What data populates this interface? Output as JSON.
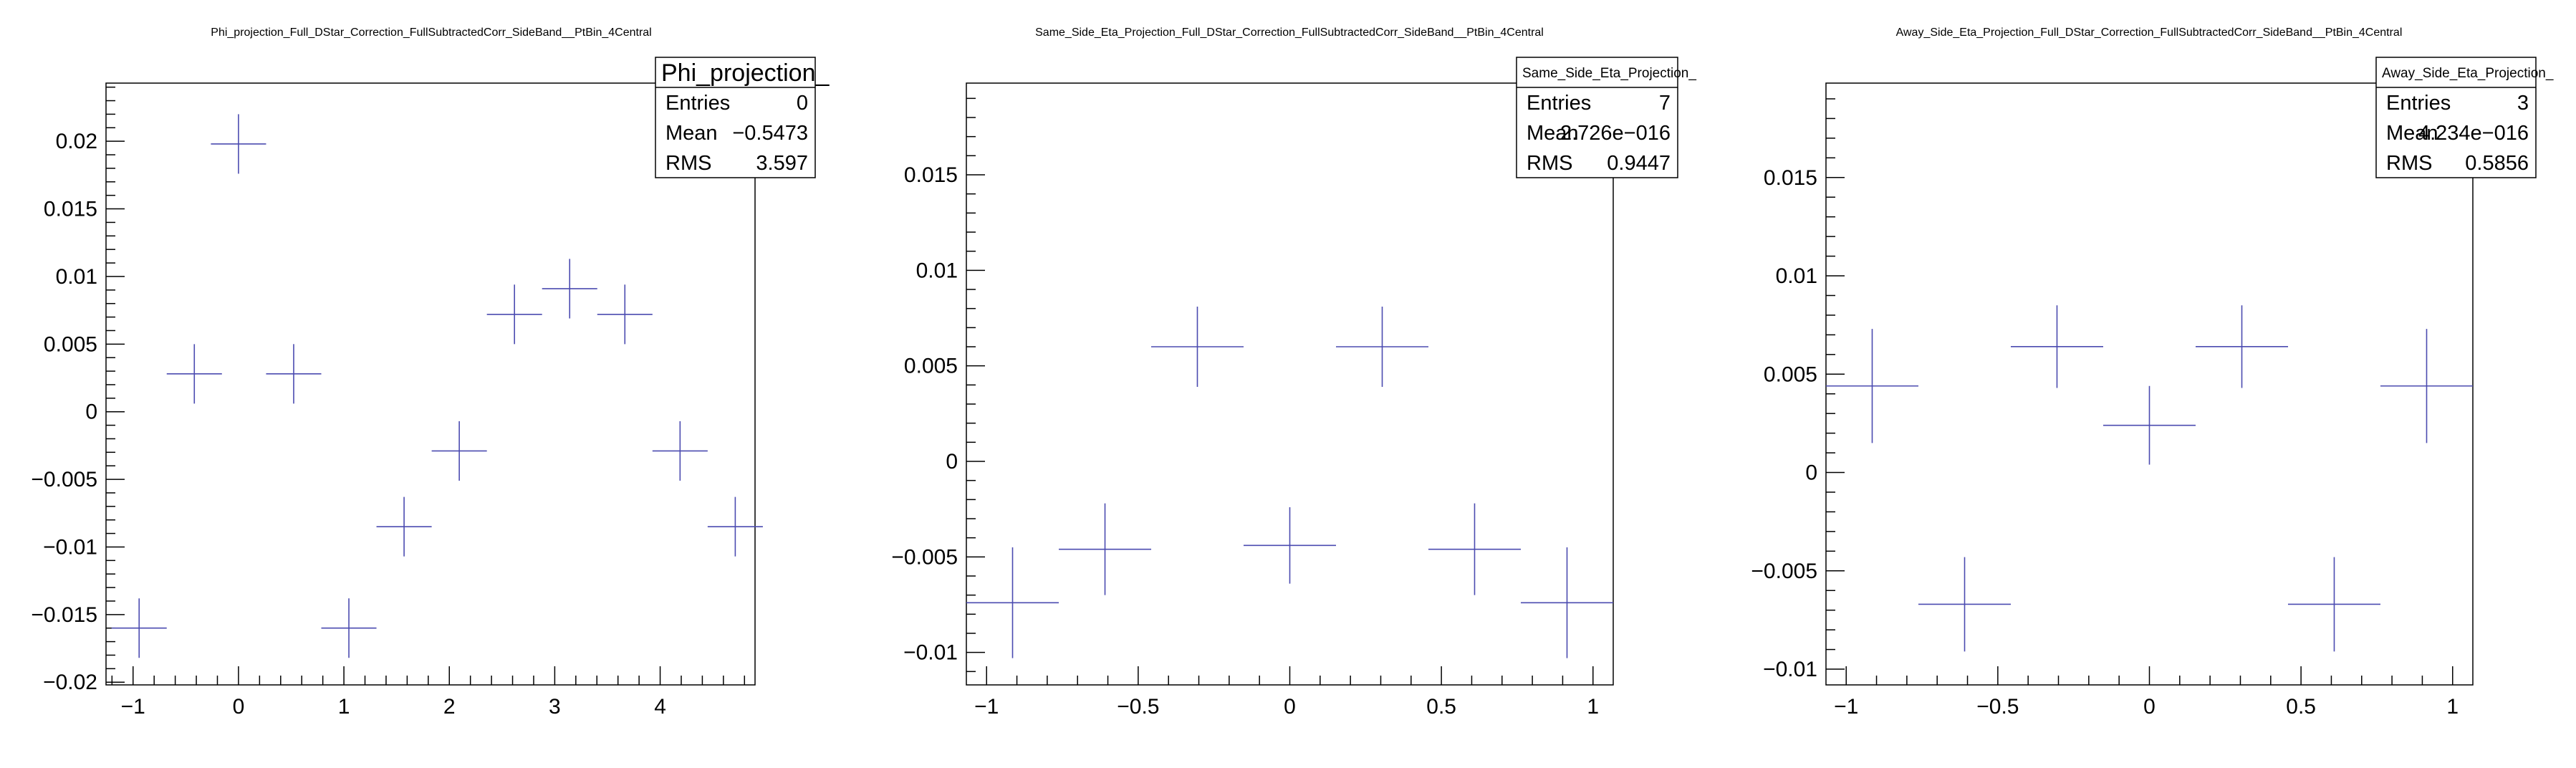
{
  "colors": {
    "marker": "#4b4bb0",
    "frame": "#000000",
    "background": "#ffffff"
  },
  "chart_data": [
    {
      "type": "scatter",
      "title": "Phi_projection_Full_DStar_Correction_FullSubtractedCorr_SideBand__PtBin_4Central",
      "xlabel": "",
      "ylabel": "",
      "xlim": [
        -1.2566,
        4.9
      ],
      "ylim": [
        -0.0202,
        0.0243
      ],
      "x_ticks": [
        -1,
        0,
        1,
        2,
        3,
        4
      ],
      "x_tick_labels": [
        "−1",
        "0",
        "1",
        "2",
        "3",
        "4"
      ],
      "y_ticks": [
        -0.02,
        -0.015,
        -0.01,
        -0.005,
        0,
        0.005,
        0.01,
        0.015,
        0.02
      ],
      "y_tick_labels": [
        "−0.02",
        "−0.015",
        "−0.01",
        "−0.005",
        "0",
        "0.005",
        "0.01",
        "0.015",
        "0.02"
      ],
      "points": [
        {
          "x": -0.9425,
          "y": -0.016,
          "xerr": 0.2618,
          "yerr": 0.0022
        },
        {
          "x": -0.4189,
          "y": 0.0028,
          "xerr": 0.2618,
          "yerr": 0.0022
        },
        {
          "x": 0.0,
          "y": 0.0198,
          "xerr": 0.2618,
          "yerr": 0.0022
        },
        {
          "x": 0.5236,
          "y": 0.0028,
          "xerr": 0.2618,
          "yerr": 0.0022
        },
        {
          "x": 1.0472,
          "y": -0.016,
          "xerr": 0.2618,
          "yerr": 0.0022
        },
        {
          "x": 1.5708,
          "y": -0.0085,
          "xerr": 0.2618,
          "yerr": 0.0022
        },
        {
          "x": 2.0944,
          "y": -0.0029,
          "xerr": 0.2618,
          "yerr": 0.0022
        },
        {
          "x": 2.618,
          "y": 0.0072,
          "xerr": 0.2618,
          "yerr": 0.0022
        },
        {
          "x": 3.1416,
          "y": 0.0091,
          "xerr": 0.2618,
          "yerr": 0.0022
        },
        {
          "x": 3.6652,
          "y": 0.0072,
          "xerr": 0.2618,
          "yerr": 0.0022
        },
        {
          "x": 4.1888,
          "y": -0.0029,
          "xerr": 0.2618,
          "yerr": 0.0022
        },
        {
          "x": 4.7124,
          "y": -0.0085,
          "xerr": 0.2618,
          "yerr": 0.0022
        }
      ],
      "stats": {
        "name": "Phi_projection_",
        "rows": [
          {
            "label": "Entries",
            "value": "0"
          },
          {
            "label": "Mean",
            "value": "−0.5473"
          },
          {
            "label": "RMS",
            "value": "3.597"
          }
        ]
      }
    },
    {
      "type": "scatter",
      "title": "Same_Side_Eta_Projection_Full_DStar_Correction_FullSubtractedCorr_SideBand__PtBin_4Central",
      "xlabel": "",
      "ylabel": "",
      "xlim": [
        -1.0667,
        1.0667
      ],
      "ylim": [
        -0.0117,
        0.0198
      ],
      "x_ticks": [
        -1,
        -0.5,
        0,
        0.5,
        1
      ],
      "x_tick_labels": [
        "−1",
        "−0.5",
        "0",
        "0.5",
        "1"
      ],
      "y_ticks": [
        -0.01,
        -0.005,
        0,
        0.005,
        0.01,
        0.015
      ],
      "y_tick_labels": [
        "−0.01",
        "−0.005",
        "0",
        "0.005",
        "0.01",
        "0.015"
      ],
      "points": [
        {
          "x": -0.9143,
          "y": -0.0074,
          "xerr": 0.1524,
          "yerr": 0.0029
        },
        {
          "x": -0.6095,
          "y": -0.0046,
          "xerr": 0.1524,
          "yerr": 0.0024
        },
        {
          "x": -0.3048,
          "y": 0.006,
          "xerr": 0.1524,
          "yerr": 0.0021
        },
        {
          "x": 0.0,
          "y": -0.0044,
          "xerr": 0.1524,
          "yerr": 0.002
        },
        {
          "x": 0.3048,
          "y": 0.006,
          "xerr": 0.1524,
          "yerr": 0.0021
        },
        {
          "x": 0.6095,
          "y": -0.0046,
          "xerr": 0.1524,
          "yerr": 0.0024
        },
        {
          "x": 0.9143,
          "y": -0.0074,
          "xerr": 0.1524,
          "yerr": 0.0029
        }
      ],
      "stats": {
        "name": "Same_Side_Eta_Projection_",
        "rows": [
          {
            "label": "Entries",
            "value": "7"
          },
          {
            "label": "Mean",
            "value": "2.726e−016"
          },
          {
            "label": "RMS",
            "value": "0.9447"
          }
        ]
      }
    },
    {
      "type": "scatter",
      "title": "Away_Side_Eta_Projection_Full_DStar_Correction_FullSubtractedCorr_SideBand__PtBin_4Central",
      "xlabel": "",
      "ylabel": "",
      "xlim": [
        -1.0667,
        1.0667
      ],
      "ylim": [
        -0.0108,
        0.0198
      ],
      "x_ticks": [
        -1,
        -0.5,
        0,
        0.5,
        1
      ],
      "x_tick_labels": [
        "−1",
        "−0.5",
        "0",
        "0.5",
        "1"
      ],
      "y_ticks": [
        -0.01,
        -0.005,
        0,
        0.005,
        0.01,
        0.015
      ],
      "y_tick_labels": [
        "−0.01",
        "−0.005",
        "0",
        "0.005",
        "0.01",
        "0.015"
      ],
      "points": [
        {
          "x": -0.9143,
          "y": 0.0044,
          "xerr": 0.1524,
          "yerr": 0.0029
        },
        {
          "x": -0.6095,
          "y": -0.0067,
          "xerr": 0.1524,
          "yerr": 0.0024
        },
        {
          "x": -0.3048,
          "y": 0.0064,
          "xerr": 0.1524,
          "yerr": 0.0021
        },
        {
          "x": 0.0,
          "y": 0.0024,
          "xerr": 0.1524,
          "yerr": 0.002
        },
        {
          "x": 0.3048,
          "y": 0.0064,
          "xerr": 0.1524,
          "yerr": 0.0021
        },
        {
          "x": 0.6095,
          "y": -0.0067,
          "xerr": 0.1524,
          "yerr": 0.0024
        },
        {
          "x": 0.9143,
          "y": 0.0044,
          "xerr": 0.1524,
          "yerr": 0.0029
        }
      ],
      "stats": {
        "name": "Away_Side_Eta_Projection_",
        "rows": [
          {
            "label": "Entries",
            "value": "3"
          },
          {
            "label": "Mean",
            "value": "4.234e−016"
          },
          {
            "label": "RMS",
            "value": "0.5856"
          }
        ]
      }
    }
  ]
}
